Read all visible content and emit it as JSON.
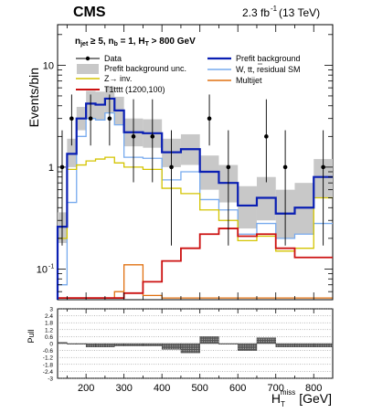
{
  "header": {
    "experiment": "CMS",
    "lumi": "2.3 fb",
    "lumi_exp": "-1",
    "energy": " (13 TeV)"
  },
  "selection": {
    "n_jet": "n",
    "n_jet_sub": "jet",
    "n_jet_cut": " ≥ 5, n",
    "n_b_sub": "b",
    "n_b_cut": " = 1, H",
    "ht_sub": "T",
    "ht_cut": " > 800 GeV"
  },
  "legend": {
    "data": "Data",
    "prefit_unc": "Prefit background unc.",
    "zinv": "Z→ inv.",
    "t1tttt": "T1tttt (1200,100)",
    "prefit_bkg": "Prefit background",
    "w_tt_a": "W, t",
    "w_tt_b": "t",
    "w_tt_c": ", residual SM",
    "multijet": "Multijet"
  },
  "axes": {
    "ylabel": "Events/bin",
    "pull_label": "Pull",
    "xlabel_main": "H",
    "xlabel_sub": "T",
    "xlabel_sup": "miss",
    "xlabel_unit": " [GeV]"
  },
  "colors": {
    "total": "#0a1fb3",
    "band": "#c8c8c8",
    "zinv": "#d4c400",
    "wtt": "#77aaee",
    "multijet": "#e07010",
    "signal": "#cc1111",
    "data": "#000000"
  },
  "chart_data": {
    "type": "histogram",
    "x_unit": "GeV",
    "xlim": [
      125,
      850
    ],
    "ylim": [
      0.05,
      25
    ],
    "yscale": "log",
    "yticks": [
      "10",
      "1",
      "10"
    ],
    "ytick_exps": [
      "",
      "",
      "-1"
    ],
    "xticks": [
      "200",
      "300",
      "400",
      "500",
      "600",
      "700",
      "800"
    ],
    "bin_edges": [
      125,
      150,
      175,
      200,
      225,
      250,
      275,
      300,
      350,
      400,
      450,
      500,
      550,
      600,
      650,
      700,
      750,
      800,
      850
    ],
    "prefit_background": [
      0.26,
      1.35,
      3.0,
      4.2,
      4.1,
      4.7,
      3.6,
      2.2,
      2.15,
      1.4,
      1.5,
      0.9,
      0.7,
      0.42,
      0.5,
      0.35,
      0.4,
      0.8
    ],
    "band_low": [
      0.18,
      1.0,
      2.3,
      3.0,
      2.9,
      3.4,
      2.6,
      1.6,
      1.55,
      1.0,
      1.05,
      0.6,
      0.45,
      0.25,
      0.3,
      0.2,
      0.22,
      0.5
    ],
    "band_high": [
      0.36,
      1.9,
      3.9,
      5.6,
      5.5,
      6.2,
      4.9,
      3.0,
      2.95,
      1.9,
      2.1,
      1.3,
      1.05,
      0.65,
      0.8,
      0.6,
      0.7,
      1.2
    ],
    "zinv": [
      0.2,
      0.95,
      1.05,
      1.15,
      1.2,
      1.25,
      1.1,
      1.0,
      0.95,
      0.62,
      0.55,
      0.38,
      0.3,
      0.19,
      0.21,
      0.15,
      0.16,
      0.5
    ],
    "w_tt_residual": [
      0.07,
      0.45,
      2.0,
      3.0,
      2.9,
      3.4,
      2.6,
      1.25,
      1.22,
      0.75,
      0.9,
      0.48,
      0.38,
      0.22,
      0.28,
      0.2,
      0.22,
      0.28
    ],
    "multijet": [
      0.052,
      0.052,
      0.052,
      0.052,
      0.052,
      0.052,
      0.06,
      0.11,
      0.055,
      0.052,
      0.052,
      0.052,
      0.052,
      0.052,
      0.052,
      0.052,
      0.052,
      0.052
    ],
    "t1tttt": [
      0.052,
      0.052,
      0.052,
      0.052,
      0.052,
      0.052,
      0.052,
      0.058,
      0.075,
      0.12,
      0.16,
      0.22,
      0.25,
      0.21,
      0.22,
      0.16,
      0.13,
      0.13
    ],
    "data_x": [
      137,
      162,
      212,
      262,
      325,
      375,
      425,
      525,
      575,
      675,
      725,
      825
    ],
    "data_y": [
      1.0,
      3.0,
      3.0,
      3.0,
      2.0,
      2.0,
      1.0,
      3.0,
      1.0,
      2.0,
      1.0,
      1.0
    ],
    "data_err_low": [
      0.83,
      1.37,
      1.37,
      1.37,
      1.29,
      1.29,
      0.83,
      1.37,
      0.83,
      1.29,
      0.83,
      0.83
    ],
    "data_err_high": [
      1.3,
      2.16,
      2.16,
      2.16,
      2.63,
      2.63,
      1.3,
      2.16,
      1.3,
      2.63,
      1.3,
      1.3
    ],
    "pull": {
      "ylim": [
        -3,
        3
      ],
      "yticks": [
        "3",
        "2.4",
        "1.8",
        "1.2",
        "0.6",
        "0",
        "-0.6",
        "-1.2",
        "-1.8",
        "-2.4",
        "-3"
      ],
      "values": [
        0.1,
        0.0,
        0.0,
        -0.3,
        -0.3,
        -0.3,
        -0.2,
        -0.2,
        -0.2,
        -0.5,
        -0.8,
        0.6,
        0.0,
        -0.6,
        0.5,
        -0.3,
        -0.3,
        -0.3
      ]
    }
  }
}
